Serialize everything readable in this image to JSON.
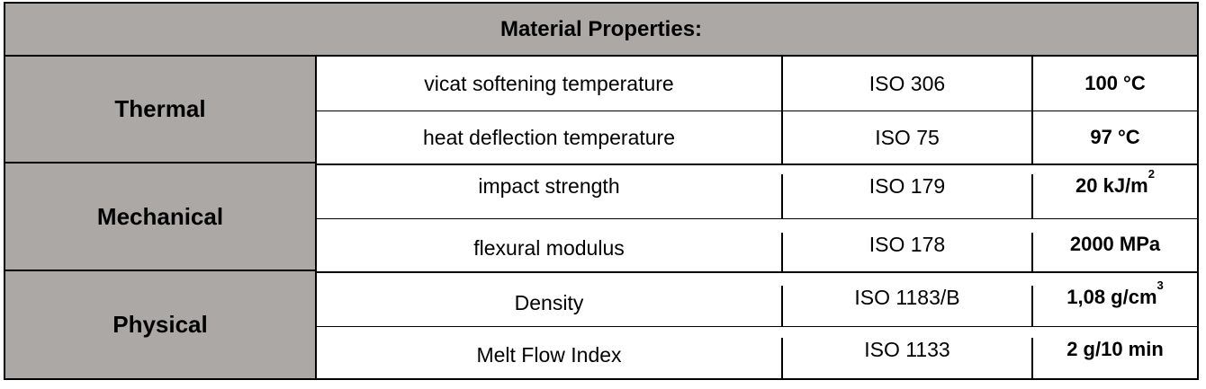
{
  "table": {
    "title": "Material Properties:",
    "groups": [
      {
        "category": "Thermal",
        "rows": [
          {
            "property": "vicat softening temperature",
            "standard": "ISO 306",
            "value": "100 °C"
          },
          {
            "property": "heat deflection temperature",
            "standard": "ISO 75",
            "value": "97 °C"
          }
        ]
      },
      {
        "category": "Mechanical",
        "rows": [
          {
            "property": "impact strength",
            "standard": "ISO 179",
            "value": "20 kJ/m",
            "value_sup": "2"
          },
          {
            "property": "flexural modulus",
            "standard": "ISO 178",
            "value": "2000 MPa"
          }
        ]
      },
      {
        "category": "Physical",
        "rows": [
          {
            "property": "Density",
            "standard": "ISO 1183/B",
            "value": "1,08 g/cm",
            "value_sup": "3"
          },
          {
            "property": "Melt Flow Index",
            "standard": "ISO 1133",
            "value": "2 g/10 min"
          }
        ]
      }
    ],
    "colors": {
      "header_background": "#aba8a6",
      "category_background": "#aba8a6",
      "cell_background": "#ffffff",
      "border": "#000000"
    }
  }
}
